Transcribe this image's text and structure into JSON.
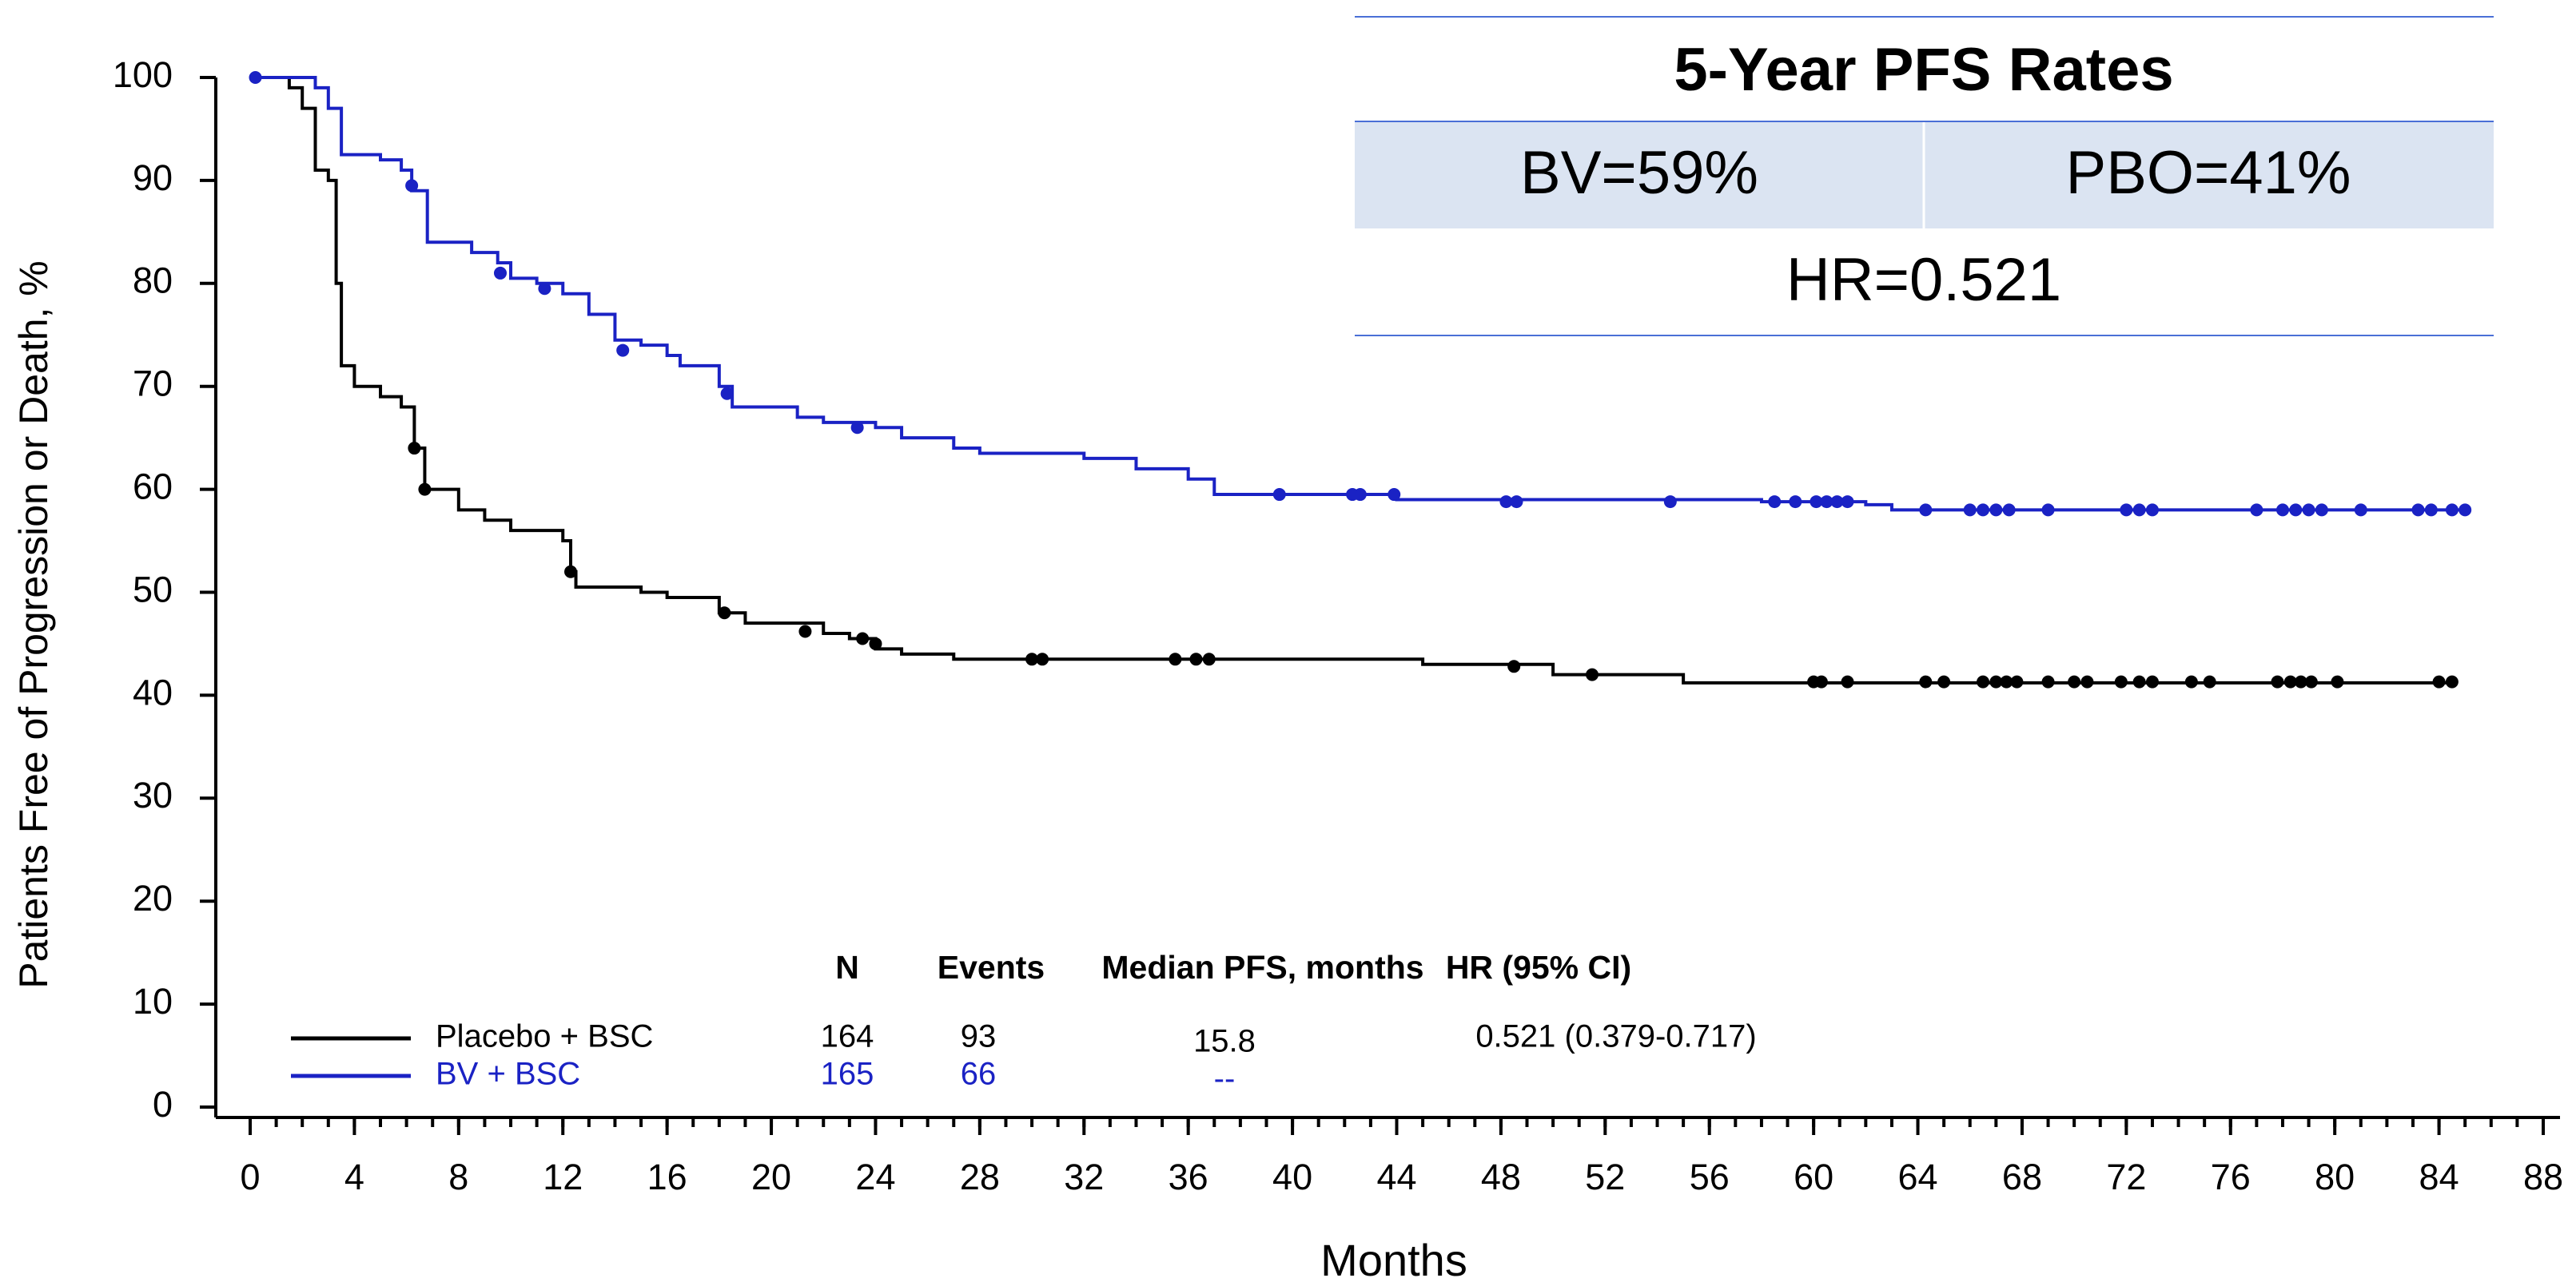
{
  "chart_data": {
    "type": "step",
    "xlabel": "Months",
    "ylabel": "Patients Free of Progression or Death, %",
    "xlim": [
      0,
      88
    ],
    "ylim": [
      0,
      100
    ],
    "xticks": [
      0,
      4,
      8,
      12,
      16,
      20,
      24,
      28,
      32,
      36,
      40,
      44,
      48,
      52,
      56,
      60,
      64,
      68,
      72,
      76,
      80,
      84,
      88
    ],
    "yticks": [
      0,
      10,
      20,
      30,
      40,
      50,
      60,
      70,
      80,
      90,
      100
    ],
    "series": [
      {
        "name": "Placebo + BSC",
        "color": "#000000",
        "x": [
          0,
          1.5,
          2,
          2.5,
          3,
          3.3,
          3.5,
          4,
          5,
          5.8,
          6.3,
          6.7,
          8,
          9,
          10,
          12,
          12.3,
          12.5,
          15,
          16,
          18,
          19,
          22,
          23,
          24,
          25,
          27,
          44,
          45,
          50,
          55,
          84.5
        ],
        "values": [
          100,
          99,
          97,
          91,
          90,
          80,
          72,
          70,
          69,
          68,
          64,
          60,
          58,
          57,
          56,
          55,
          52,
          50.5,
          50,
          49.5,
          48,
          47,
          46,
          45.5,
          44.5,
          44,
          43.5,
          43.5,
          43,
          42,
          41.2,
          41.2
        ],
        "censor_x": [
          6.3,
          6.7,
          12.3,
          18.2,
          21.3,
          23.5,
          24,
          30,
          30.4,
          35.5,
          36.3,
          36.8,
          48.5,
          51.5,
          60,
          60.3,
          61.3,
          64.3,
          65,
          66.5,
          67,
          67.4,
          67.8,
          69,
          70,
          70.5,
          71.8,
          72.5,
          73,
          74.5,
          75.2,
          77.8,
          78.3,
          78.7,
          79.1,
          80.1,
          84,
          84.5
        ],
        "censor_values": [
          64,
          60,
          52,
          48,
          46.2,
          45.5,
          45,
          43.5,
          43.5,
          43.5,
          43.5,
          43.5,
          42.8,
          42,
          41.3,
          41.3,
          41.3,
          41.3,
          41.3,
          41.3,
          41.3,
          41.3,
          41.3,
          41.3,
          41.3,
          41.3,
          41.3,
          41.3,
          41.3,
          41.3,
          41.3,
          41.3,
          41.3,
          41.3,
          41.3,
          41.3,
          41.3,
          41.3
        ]
      },
      {
        "name": "BV + BSC",
        "color": "#1a22c4",
        "x": [
          0,
          2.5,
          3,
          3.5,
          5,
          5.8,
          6.2,
          6.8,
          8.5,
          9.5,
          10,
          11,
          12,
          13,
          14,
          15,
          16,
          16.5,
          18,
          18.5,
          21,
          22,
          24,
          25,
          27,
          28,
          32,
          34,
          36,
          37,
          43,
          44,
          58,
          62,
          63,
          85
        ],
        "values": [
          100,
          99,
          97,
          92.5,
          92,
          91,
          89,
          84,
          83,
          82,
          80.5,
          80,
          79,
          77,
          74.5,
          74,
          73,
          72,
          70,
          68,
          67,
          66.5,
          66,
          65,
          64,
          63.5,
          63,
          62,
          61,
          59.5,
          59.5,
          59,
          58.8,
          58.5,
          58,
          58
        ],
        "censor_x": [
          0.2,
          6.2,
          9.6,
          11.3,
          14.3,
          18.3,
          23.3,
          39.5,
          42.3,
          42.6,
          43.9,
          48.2,
          48.6,
          54.5,
          58.5,
          59.3,
          60.1,
          60.5,
          60.9,
          61.3,
          64.3,
          66,
          66.5,
          67,
          67.5,
          69,
          72,
          72.5,
          73,
          77,
          78,
          78.5,
          79,
          79.5,
          81,
          83.2,
          83.7,
          84.5,
          85
        ],
        "censor_values": [
          100,
          89.5,
          81,
          79.5,
          73.5,
          69.3,
          66,
          59.5,
          59.5,
          59.5,
          59.5,
          58.8,
          58.8,
          58.8,
          58.8,
          58.8,
          58.8,
          58.8,
          58.8,
          58.8,
          58,
          58,
          58,
          58,
          58,
          58,
          58,
          58,
          58,
          58,
          58,
          58,
          58,
          58,
          58,
          58,
          58,
          58,
          58
        ]
      }
    ],
    "legend_table": {
      "columns": [
        "N",
        "Events",
        "Median PFS, months",
        "HR (95% CI)"
      ],
      "rows": [
        [
          164,
          93,
          15.8,
          "0.521 (0.379-0.717)"
        ],
        [
          165,
          66,
          "--"
        ]
      ]
    },
    "inset": {
      "title": "5-Year PFS Rates",
      "cells": [
        "BV=59%",
        "PBO=41%"
      ],
      "footer": "HR=0.521"
    }
  }
}
